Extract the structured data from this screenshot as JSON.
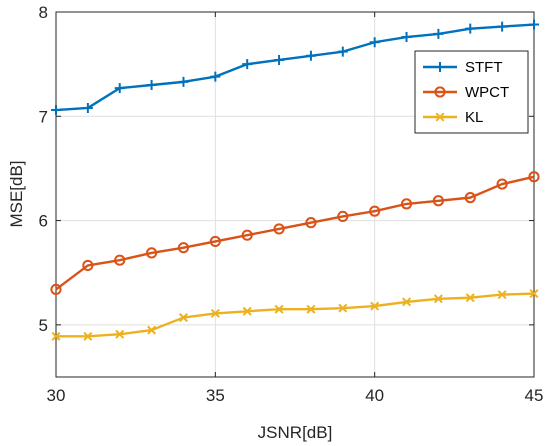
{
  "chart_data": {
    "type": "line",
    "title": "",
    "xlabel": "JSNR[dB]",
    "ylabel": "MSE[dB]",
    "xlim": [
      30,
      45
    ],
    "ylim": [
      4.5,
      8
    ],
    "xticks": [
      30,
      35,
      40,
      45
    ],
    "yticks": [
      5,
      6,
      7,
      8
    ],
    "grid": true,
    "legend_position": "top-right",
    "x": [
      30,
      31,
      32,
      33,
      34,
      35,
      36,
      37,
      38,
      39,
      40,
      41,
      42,
      43,
      44,
      45
    ],
    "series": [
      {
        "name": "STFT",
        "marker": "plus",
        "color": "#0072BD",
        "values": [
          7.06,
          7.08,
          7.27,
          7.3,
          7.33,
          7.38,
          7.5,
          7.54,
          7.58,
          7.62,
          7.71,
          7.76,
          7.79,
          7.84,
          7.86,
          7.88
        ]
      },
      {
        "name": "WPCT",
        "marker": "circle",
        "color": "#D95319",
        "values": [
          5.34,
          5.57,
          5.62,
          5.69,
          5.74,
          5.8,
          5.86,
          5.92,
          5.98,
          6.04,
          6.09,
          6.16,
          6.19,
          6.22,
          6.35,
          6.42
        ]
      },
      {
        "name": "KL",
        "marker": "x",
        "color": "#EDB120",
        "values": [
          4.89,
          4.89,
          4.91,
          4.95,
          5.07,
          5.11,
          5.13,
          5.15,
          5.15,
          5.16,
          5.18,
          5.22,
          5.25,
          5.26,
          5.29,
          5.3
        ]
      }
    ]
  }
}
